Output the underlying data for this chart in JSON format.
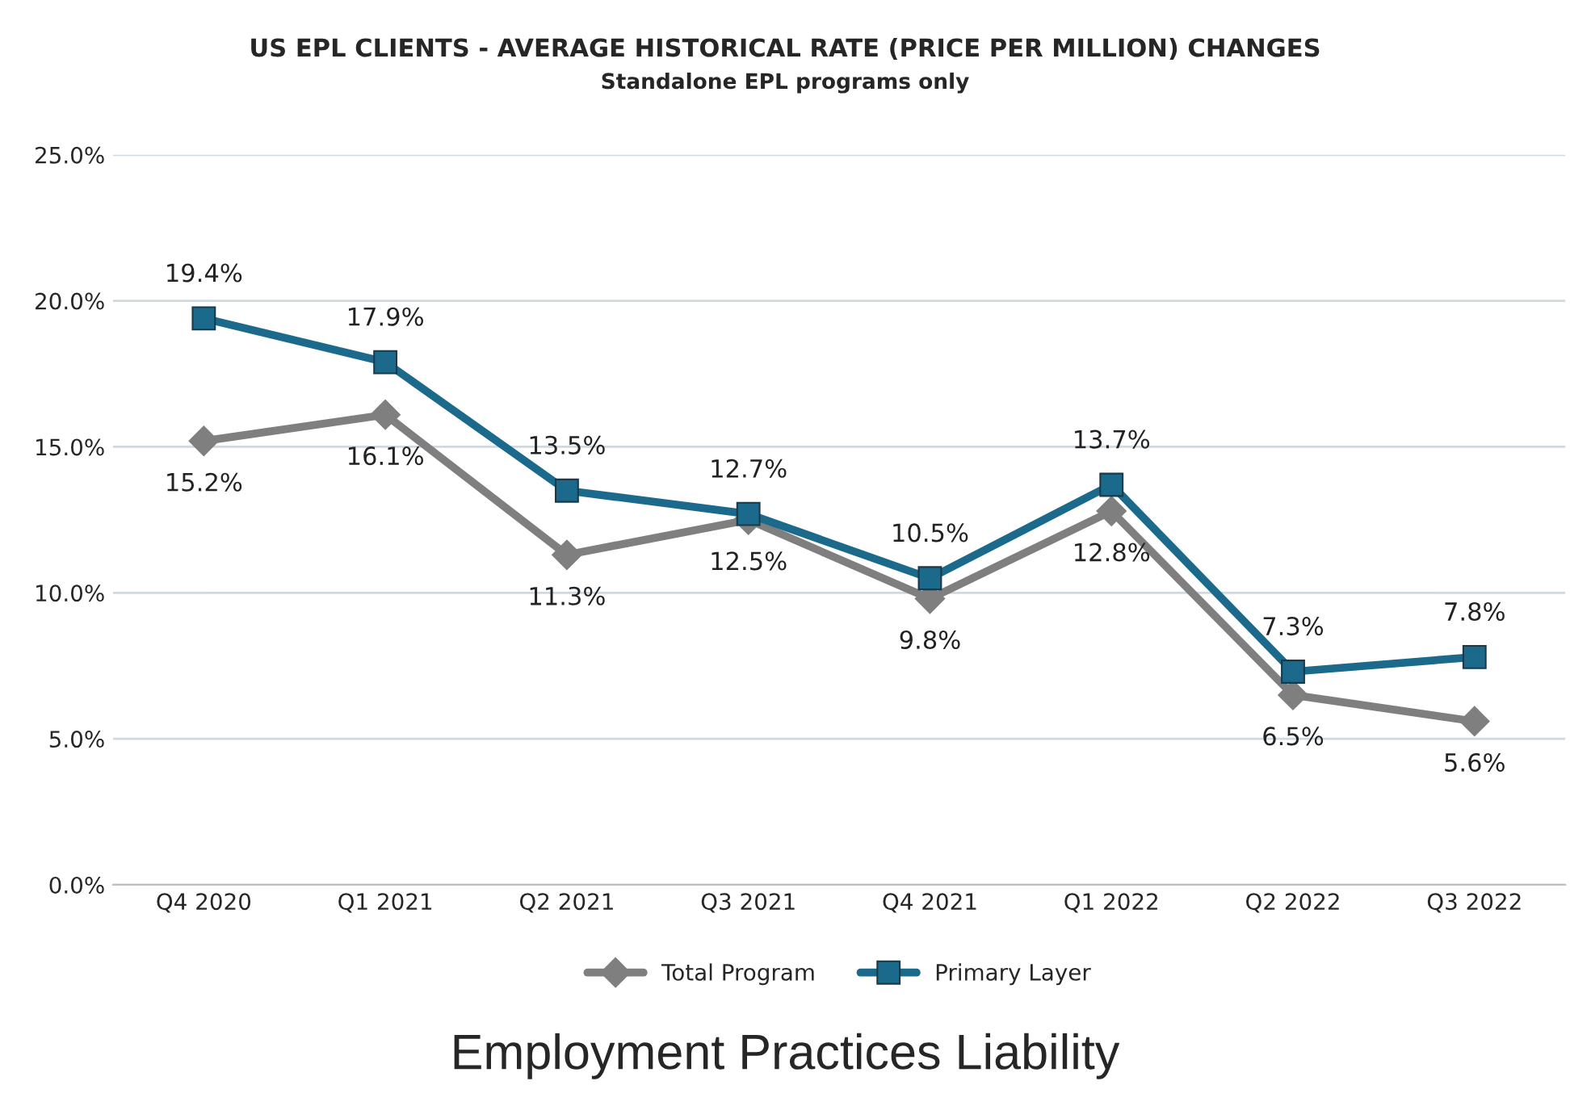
{
  "chart_data": {
    "type": "line",
    "title": "US EPL CLIENTS - AVERAGE HISTORICAL RATE (PRICE PER MILLION) CHANGES",
    "subtitle": "Standalone EPL programs only",
    "categories": [
      "Q4 2020",
      "Q1 2021",
      "Q2 2021",
      "Q3 2021",
      "Q4 2021",
      "Q1 2022",
      "Q2 2022",
      "Q3 2022"
    ],
    "series": [
      {
        "name": "Total Program",
        "color": "#7f7f7f",
        "marker": "diamond",
        "values": [
          15.2,
          16.1,
          11.3,
          12.5,
          9.8,
          12.8,
          6.5,
          5.6
        ],
        "value_labels": [
          "15.2%",
          "16.1%",
          "11.3%",
          "12.5%",
          "9.8%",
          "12.8%",
          "6.5%",
          "5.6%"
        ]
      },
      {
        "name": "Primary Layer",
        "color": "#1b6a8c",
        "marker": "square",
        "values": [
          19.4,
          17.9,
          13.5,
          12.7,
          10.5,
          13.7,
          7.3,
          7.8
        ],
        "value_labels": [
          "19.4%",
          "17.9%",
          "13.5%",
          "12.7%",
          "10.5%",
          "13.7%",
          "7.3%",
          "7.8%"
        ]
      }
    ],
    "ylim": [
      0,
      25
    ],
    "yticks": [
      {
        "value": 0,
        "label": "0.0%"
      },
      {
        "value": 5,
        "label": "5.0%"
      },
      {
        "value": 10,
        "label": "10.0%"
      },
      {
        "value": 15,
        "label": "15.0%"
      },
      {
        "value": 20,
        "label": "20.0%"
      },
      {
        "value": 25,
        "label": "25.0%"
      }
    ],
    "grid": "y",
    "legend": "bottom",
    "line_style": "solid",
    "annotations": [
      "Employment Practices Liability"
    ]
  }
}
